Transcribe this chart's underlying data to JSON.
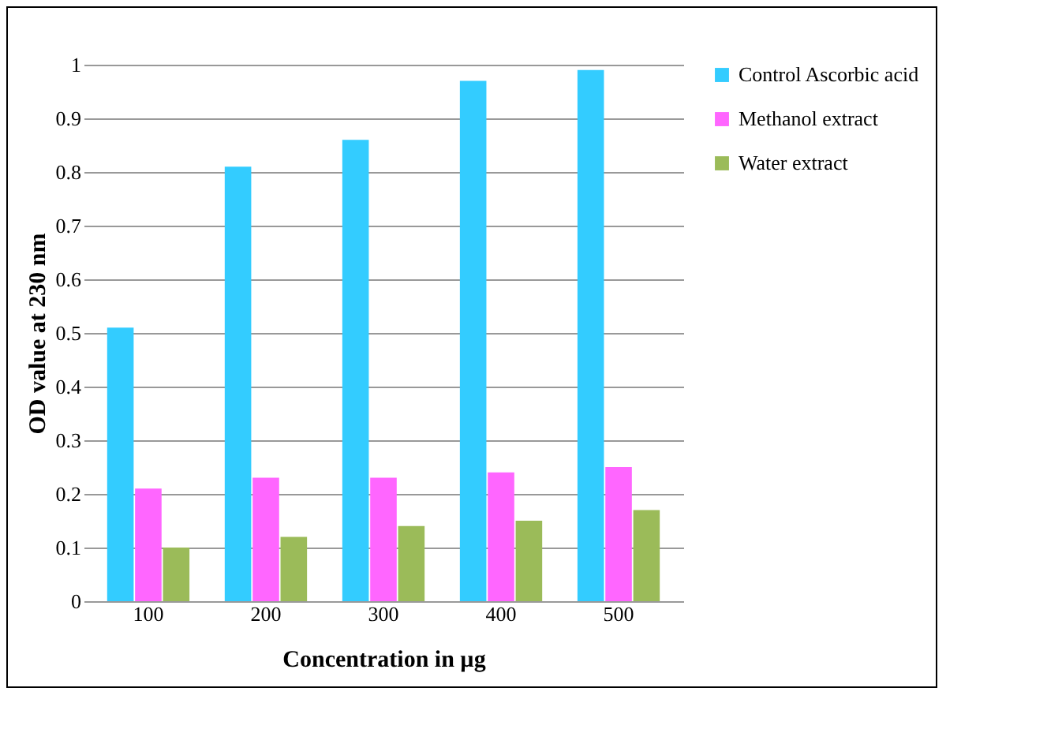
{
  "chart_data": {
    "type": "bar",
    "xlabel": "Concentration in µg",
    "ylabel": "OD value at 230 nm",
    "categories": [
      "100",
      "200",
      "300",
      "400",
      "500"
    ],
    "series": [
      {
        "name": "Control Ascorbic  acid",
        "color": "#33ccff",
        "values": [
          0.51,
          0.81,
          0.86,
          0.97,
          0.99
        ]
      },
      {
        "name": "Methanol extract",
        "color": "#ff66ff",
        "values": [
          0.21,
          0.23,
          0.23,
          0.24,
          0.25
        ]
      },
      {
        "name": "Water extract",
        "color": "#9bbb59",
        "values": [
          0.1,
          0.12,
          0.14,
          0.15,
          0.17
        ]
      }
    ],
    "ylim": [
      0,
      1
    ],
    "yticks": [
      0,
      0.1,
      0.2,
      0.3,
      0.4,
      0.5,
      0.6,
      0.7,
      0.8,
      0.9,
      1
    ],
    "grid": "y",
    "legend": "right"
  }
}
